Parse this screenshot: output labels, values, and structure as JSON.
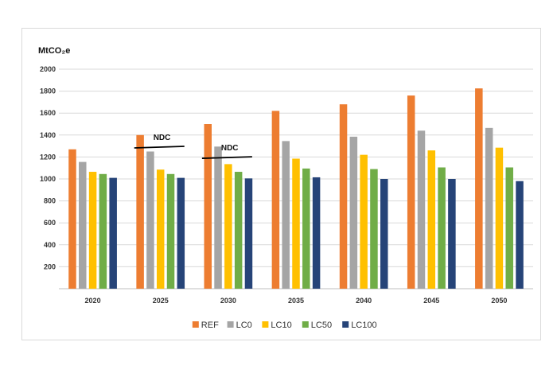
{
  "chart_data": {
    "type": "bar",
    "ylabel": "MtCO₂e",
    "ylim": [
      0,
      2000
    ],
    "yticks": [
      "200",
      "400",
      "600",
      "800",
      "1000",
      "1200",
      "1400",
      "1600",
      "1800",
      "2000"
    ],
    "grid": true,
    "legend_position": "bottom",
    "categories": [
      "2020",
      "2025",
      "2030",
      "2035",
      "2040",
      "2045",
      "2050"
    ],
    "series": [
      {
        "name": "REF",
        "color": "#ed7d31",
        "values": [
          1270,
          1400,
          1500,
          1620,
          1680,
          1760,
          1825
        ]
      },
      {
        "name": "LC0",
        "color": "#a5a5a5",
        "values": [
          1155,
          1250,
          1295,
          1345,
          1385,
          1440,
          1465
        ]
      },
      {
        "name": "LC10",
        "color": "#ffc000",
        "values": [
          1065,
          1085,
          1135,
          1185,
          1220,
          1260,
          1285
        ]
      },
      {
        "name": "LC50",
        "color": "#70ad47",
        "values": [
          1045,
          1045,
          1065,
          1095,
          1090,
          1105,
          1105
        ]
      },
      {
        "name": "LC100",
        "color": "#264478",
        "values": [
          1010,
          1010,
          1005,
          1015,
          1000,
          1000,
          980
        ]
      }
    ],
    "annotations": [
      {
        "text": "NDC",
        "category": "2025",
        "value": 1290
      },
      {
        "text": "NDC",
        "category": "2030",
        "value": 1195
      }
    ]
  }
}
